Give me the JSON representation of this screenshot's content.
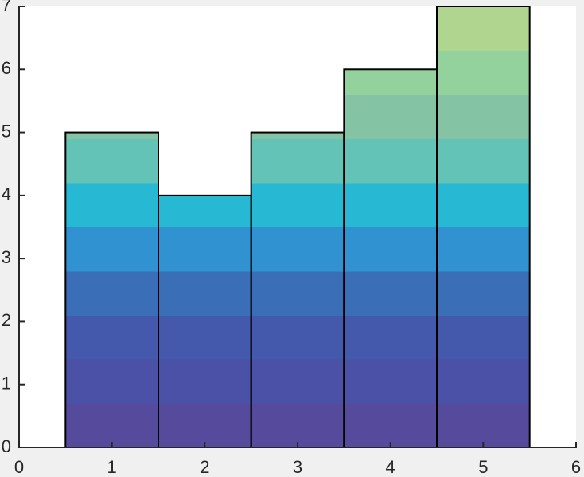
{
  "chart_data": {
    "type": "bar",
    "x": [
      1,
      2,
      3,
      4,
      5
    ],
    "values": [
      5,
      4,
      5,
      6,
      7
    ],
    "band_colors": [
      "#564a9c",
      "#4a51a6",
      "#4459ab",
      "#3a6fb8",
      "#3192d1",
      "#27b8d4",
      "#63c3b7",
      "#84c4a5",
      "#94d29d",
      "#b0d58f",
      "#cfd184"
    ],
    "band_height": 0.7,
    "xlim": [
      0,
      6
    ],
    "ylim": [
      0,
      7
    ],
    "xticks": [
      0,
      1,
      2,
      3,
      4,
      5,
      6
    ],
    "yticks": [
      0,
      1,
      2,
      3,
      4,
      5,
      6,
      7
    ],
    "bar_width": 1,
    "edge_color": "#000000"
  }
}
